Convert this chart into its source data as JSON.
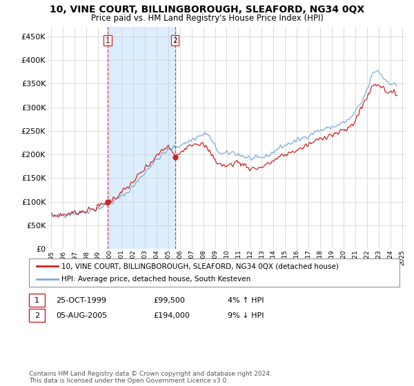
{
  "title": "10, VINE COURT, BILLINGBOROUGH, SLEAFORD, NG34 0QX",
  "subtitle": "Price paid vs. HM Land Registry's House Price Index (HPI)",
  "ytick_values": [
    0,
    50000,
    100000,
    150000,
    200000,
    250000,
    300000,
    350000,
    400000,
    450000
  ],
  "ylim": [
    0,
    470000
  ],
  "xlim_start": 1994.7,
  "xlim_end": 2025.3,
  "sale1_x": 1999.82,
  "sale1_y": 99500,
  "sale2_x": 2005.58,
  "sale2_y": 194000,
  "sale1_date": "25-OCT-1999",
  "sale1_price": "£99,500",
  "sale1_hpi": "4% ↑ HPI",
  "sale2_date": "05-AUG-2005",
  "sale2_price": "£194,000",
  "sale2_hpi": "9% ↓ HPI",
  "line_color_sales": "#cc2222",
  "line_color_hpi": "#7aaddd",
  "vline_color": "#cc2222",
  "shade_color": "#ddeeff",
  "background_color": "#ffffff",
  "grid_color": "#cccccc",
  "legend_label_sales": "10, VINE COURT, BILLINGBOROUGH, SLEAFORD, NG34 0QX (detached house)",
  "legend_label_hpi": "HPI: Average price, detached house, South Kesteven",
  "footer": "Contains HM Land Registry data © Crown copyright and database right 2024.\nThis data is licensed under the Open Government Licence v3.0."
}
